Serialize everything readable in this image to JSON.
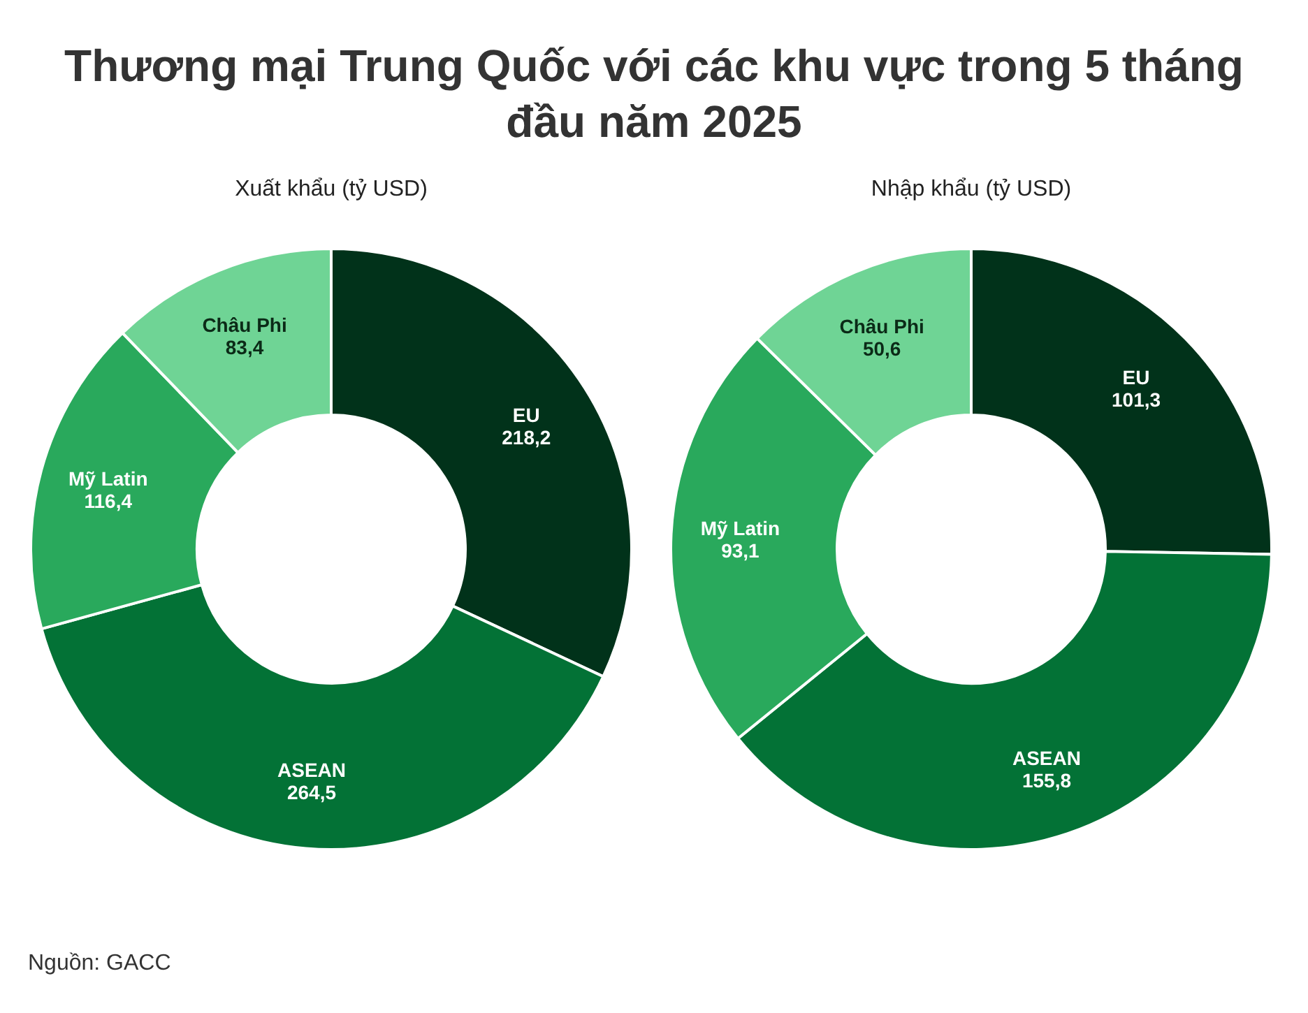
{
  "chart_data": [
    {
      "type": "donut",
      "title": "Thương mại Trung Quốc với các khu vực trong 5 tháng đầu năm 2025",
      "subtitle": "Xuất khẩu (tỷ USD)",
      "categories": [
        "EU",
        "ASEAN",
        "Mỹ Latin",
        "Châu Phi"
      ],
      "values": [
        218.2,
        264.5,
        116.4,
        83.4
      ],
      "value_labels": [
        "218,2",
        "264,5",
        "116,4",
        "83,4"
      ],
      "colors": [
        "#01321a",
        "#037236",
        "#29a95c",
        "#6fd495"
      ],
      "legend": false,
      "annotations": [
        "Nguồn: GACC"
      ]
    },
    {
      "type": "donut",
      "subtitle": "Nhập khẩu (tỷ USD)",
      "categories": [
        "EU",
        "ASEAN",
        "Mỹ Latin",
        "Châu Phi"
      ],
      "values": [
        101.3,
        155.8,
        93.1,
        50.6
      ],
      "value_labels": [
        "101,3",
        "155,8",
        "93,1",
        "50,6"
      ],
      "colors": [
        "#01321a",
        "#037236",
        "#29a95c",
        "#6fd495"
      ],
      "legend": false
    }
  ]
}
